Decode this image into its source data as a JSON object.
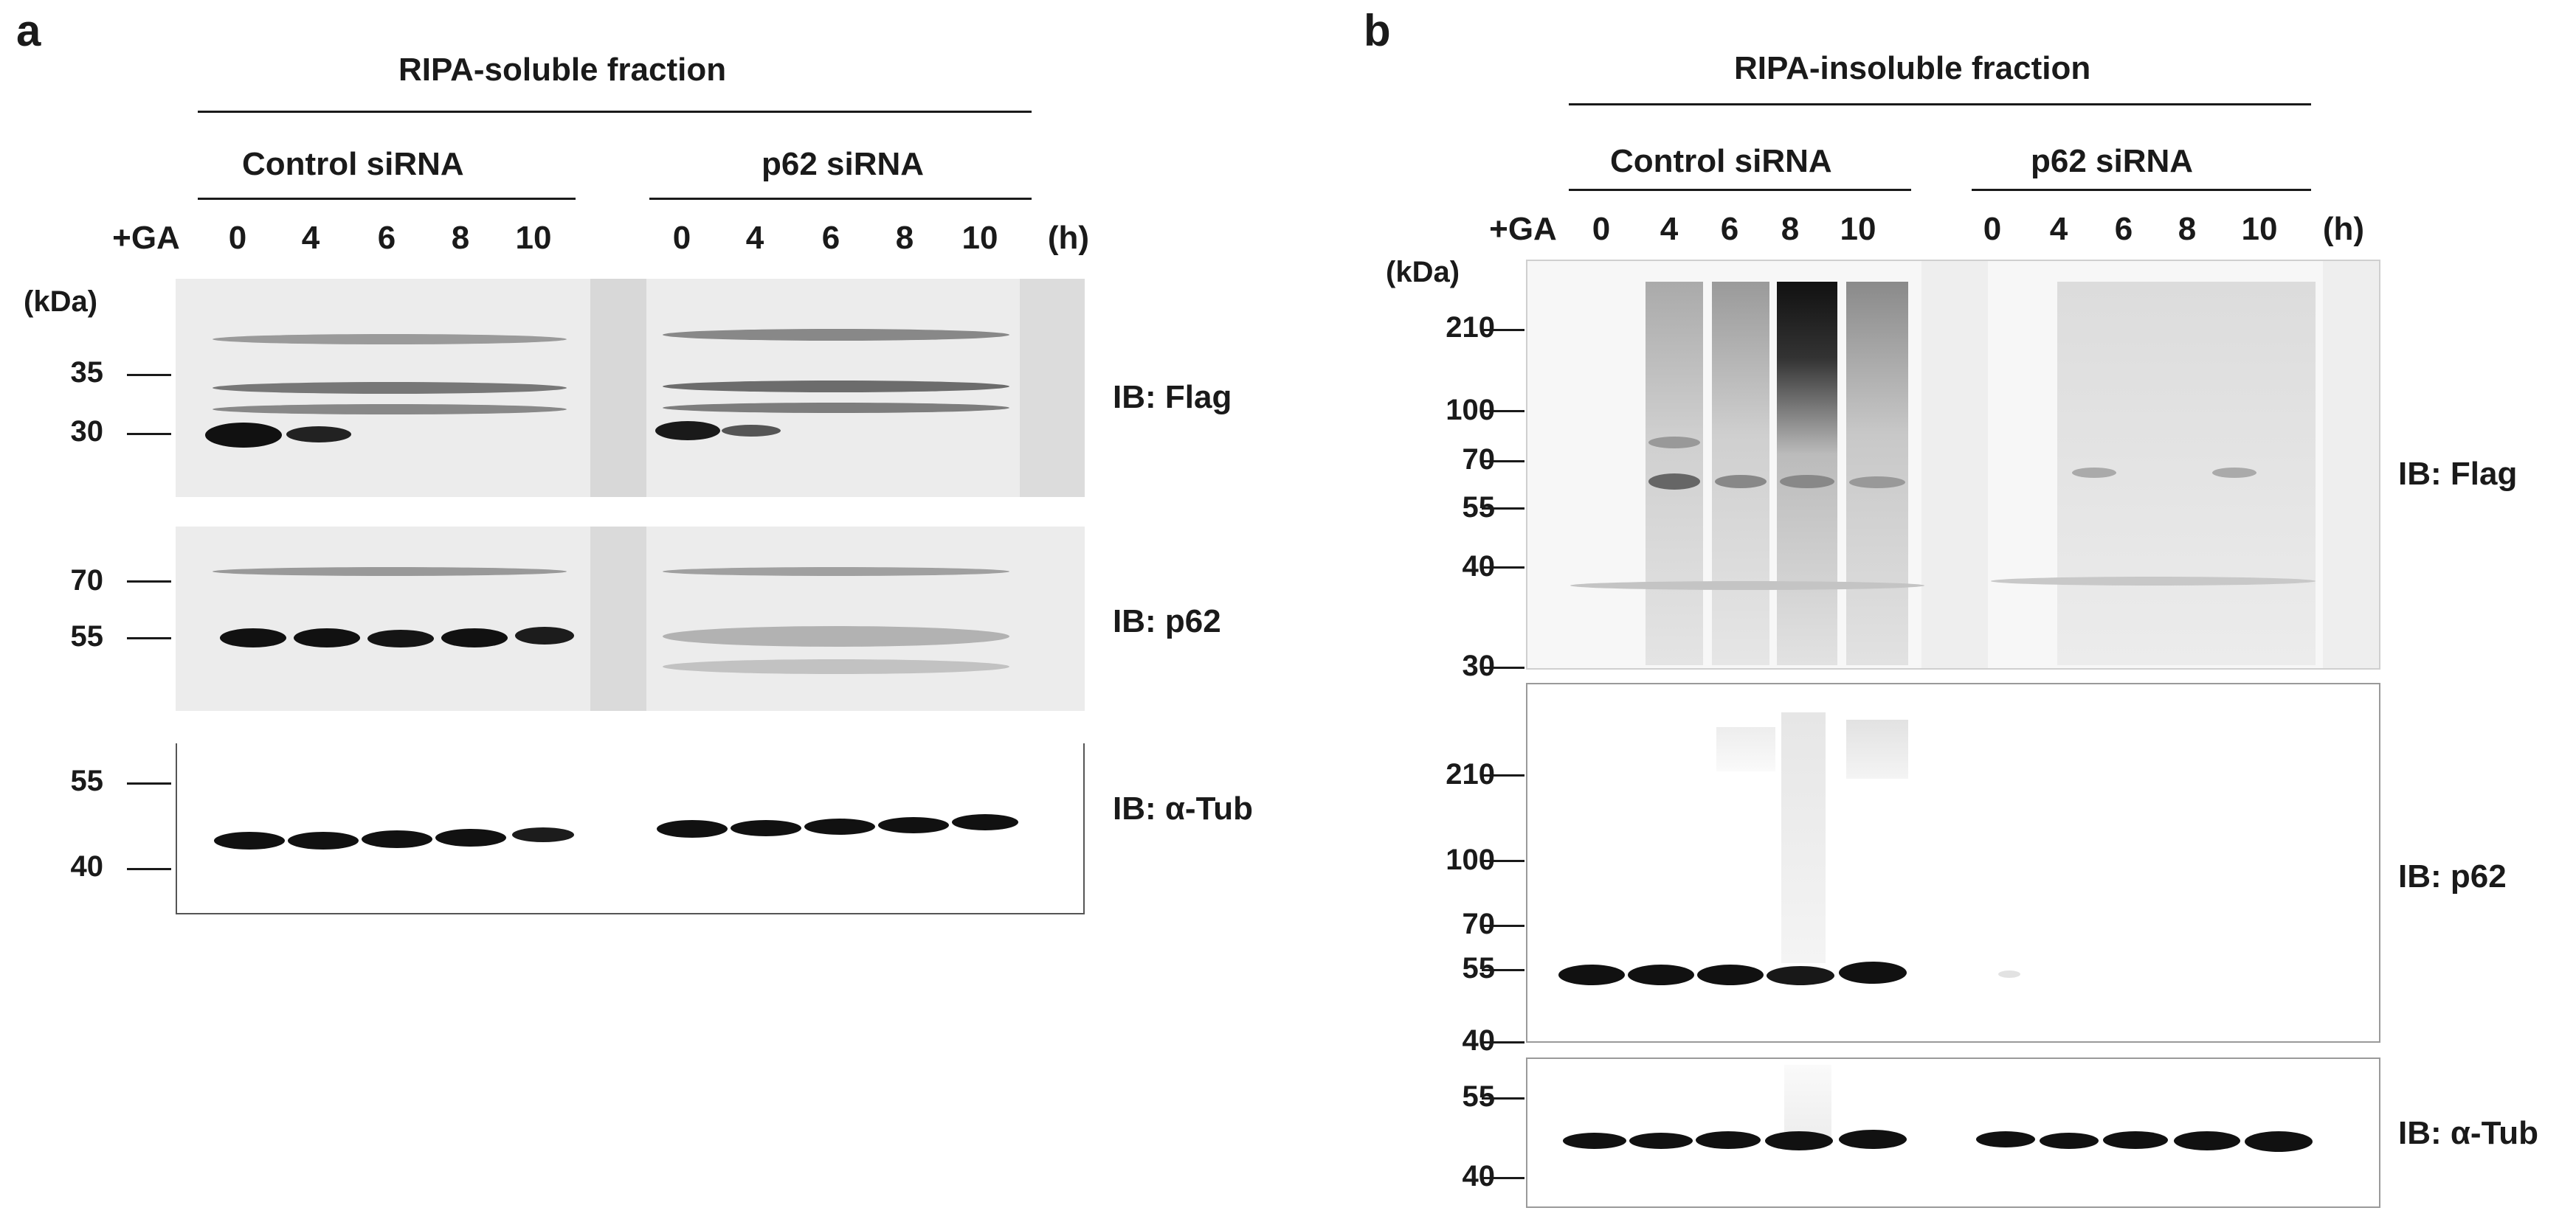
{
  "panel_a": {
    "letter": "a",
    "title": "RIPA-soluble fraction",
    "group_left": "Control siRNA",
    "group_right": "p62 siRNA",
    "treatment": "+GA",
    "lanes_left": [
      "0",
      "4",
      "6",
      "8",
      "10"
    ],
    "lanes_right": [
      "0",
      "4",
      "6",
      "8",
      "10"
    ],
    "unit": "(h)",
    "kda": "(kDa)",
    "blots": [
      {
        "label": "IB: Flag",
        "markers": [
          "35",
          "30"
        ]
      },
      {
        "label": "IB: p62",
        "markers": [
          "70",
          "55"
        ]
      },
      {
        "label": "IB: α-Tub",
        "markers": [
          "55",
          "40"
        ]
      }
    ]
  },
  "panel_b": {
    "letter": "b",
    "title": "RIPA-insoluble fraction",
    "group_left": "Control siRNA",
    "group_right": "p62 siRNA",
    "treatment": "+GA",
    "lanes_left": [
      "0",
      "4",
      "6",
      "8",
      "10"
    ],
    "lanes_right": [
      "0",
      "4",
      "6",
      "8",
      "10"
    ],
    "unit": "(h)",
    "kda": "(kDa)",
    "blots": [
      {
        "label": "IB: Flag",
        "markers": [
          "210",
          "100",
          "70",
          "55",
          "40",
          "30"
        ]
      },
      {
        "label": "IB: p62",
        "markers": [
          "210",
          "100",
          "70",
          "55",
          "40"
        ]
      },
      {
        "label": "IB: α-Tub",
        "markers": [
          "55",
          "40"
        ]
      }
    ]
  }
}
